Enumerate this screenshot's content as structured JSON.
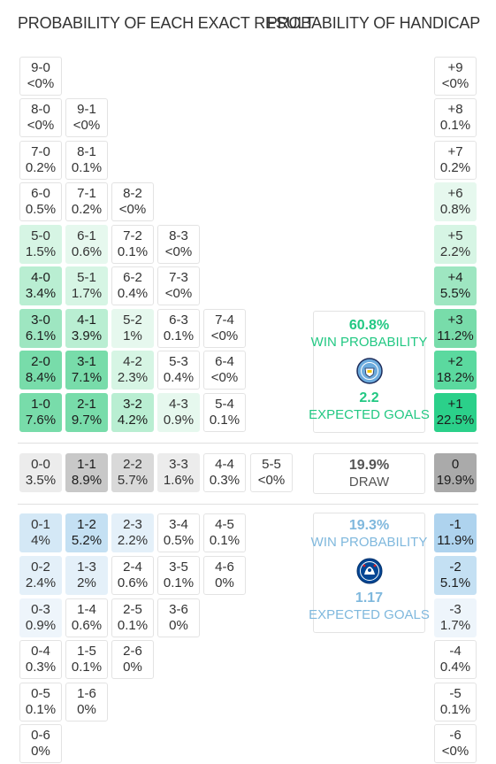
{
  "headers": {
    "exact_result": "PROBABILITY OF EACH EXACT RESULT",
    "handicap": "PROBABILITY OF HANDICAP"
  },
  "colors": {
    "home_accent": "#22c883",
    "away_accent": "#7fb8dd",
    "draw_text": "#555555"
  },
  "home_wins": [
    [
      {
        "s": "9-0",
        "p": "<0%"
      }
    ],
    [
      {
        "s": "8-0",
        "p": "<0%"
      },
      {
        "s": "9-1",
        "p": "<0%"
      }
    ],
    [
      {
        "s": "7-0",
        "p": "0.2%"
      },
      {
        "s": "8-1",
        "p": "0.1%"
      }
    ],
    [
      {
        "s": "6-0",
        "p": "0.5%"
      },
      {
        "s": "7-1",
        "p": "0.2%"
      },
      {
        "s": "8-2",
        "p": "<0%"
      }
    ],
    [
      {
        "s": "5-0",
        "p": "1.5%"
      },
      {
        "s": "6-1",
        "p": "0.6%"
      },
      {
        "s": "7-2",
        "p": "0.1%"
      },
      {
        "s": "8-3",
        "p": "<0%"
      }
    ],
    [
      {
        "s": "4-0",
        "p": "3.4%"
      },
      {
        "s": "5-1",
        "p": "1.7%"
      },
      {
        "s": "6-2",
        "p": "0.4%"
      },
      {
        "s": "7-3",
        "p": "<0%"
      }
    ],
    [
      {
        "s": "3-0",
        "p": "6.1%"
      },
      {
        "s": "4-1",
        "p": "3.9%"
      },
      {
        "s": "5-2",
        "p": "1%"
      },
      {
        "s": "6-3",
        "p": "0.1%"
      },
      {
        "s": "7-4",
        "p": "<0%"
      }
    ],
    [
      {
        "s": "2-0",
        "p": "8.4%"
      },
      {
        "s": "3-1",
        "p": "7.1%"
      },
      {
        "s": "4-2",
        "p": "2.3%"
      },
      {
        "s": "5-3",
        "p": "0.4%"
      },
      {
        "s": "6-4",
        "p": "<0%"
      }
    ],
    [
      {
        "s": "1-0",
        "p": "7.6%"
      },
      {
        "s": "2-1",
        "p": "9.7%"
      },
      {
        "s": "3-2",
        "p": "4.2%"
      },
      {
        "s": "4-3",
        "p": "0.9%"
      },
      {
        "s": "5-4",
        "p": "0.1%"
      }
    ]
  ],
  "draws": [
    {
      "s": "0-0",
      "p": "3.5%"
    },
    {
      "s": "1-1",
      "p": "8.9%"
    },
    {
      "s": "2-2",
      "p": "5.7%"
    },
    {
      "s": "3-3",
      "p": "1.6%"
    },
    {
      "s": "4-4",
      "p": "0.3%"
    },
    {
      "s": "5-5",
      "p": "<0%"
    }
  ],
  "away_wins": [
    [
      {
        "s": "0-1",
        "p": "4%"
      },
      {
        "s": "1-2",
        "p": "5.2%"
      },
      {
        "s": "2-3",
        "p": "2.2%"
      },
      {
        "s": "3-4",
        "p": "0.5%"
      },
      {
        "s": "4-5",
        "p": "0.1%"
      }
    ],
    [
      {
        "s": "0-2",
        "p": "2.4%"
      },
      {
        "s": "1-3",
        "p": "2%"
      },
      {
        "s": "2-4",
        "p": "0.6%"
      },
      {
        "s": "3-5",
        "p": "0.1%"
      },
      {
        "s": "4-6",
        "p": "0%"
      }
    ],
    [
      {
        "s": "0-3",
        "p": "0.9%"
      },
      {
        "s": "1-4",
        "p": "0.6%"
      },
      {
        "s": "2-5",
        "p": "0.1%"
      },
      {
        "s": "3-6",
        "p": "0%"
      }
    ],
    [
      {
        "s": "0-4",
        "p": "0.3%"
      },
      {
        "s": "1-5",
        "p": "0.1%"
      },
      {
        "s": "2-6",
        "p": "0%"
      }
    ],
    [
      {
        "s": "0-5",
        "p": "0.1%"
      },
      {
        "s": "1-6",
        "p": "0%"
      }
    ],
    [
      {
        "s": "0-6",
        "p": "0%"
      }
    ]
  ],
  "handicap": [
    {
      "h": "+9",
      "p": "<0%"
    },
    {
      "h": "+8",
      "p": "0.1%"
    },
    {
      "h": "+7",
      "p": "0.2%"
    },
    {
      "h": "+6",
      "p": "0.8%"
    },
    {
      "h": "+5",
      "p": "2.2%"
    },
    {
      "h": "+4",
      "p": "5.5%"
    },
    {
      "h": "+3",
      "p": "11.2%"
    },
    {
      "h": "+2",
      "p": "18.2%"
    },
    {
      "h": "+1",
      "p": "22.5%"
    },
    {
      "h": "0",
      "p": "19.9%"
    },
    {
      "h": "-1",
      "p": "11.9%"
    },
    {
      "h": "-2",
      "p": "5.1%"
    },
    {
      "h": "-3",
      "p": "1.7%"
    },
    {
      "h": "-4",
      "p": "0.4%"
    },
    {
      "h": "-5",
      "p": "0.1%"
    },
    {
      "h": "-6",
      "p": "<0%"
    }
  ],
  "home_summary": {
    "win_pct": "60.8%",
    "win_label": "WIN PROBABILITY",
    "goals": "2.2",
    "goals_label": "EXPECTED GOALS",
    "crest_icon": "manchester-city-crest"
  },
  "draw_summary": {
    "pct": "19.9%",
    "label": "DRAW"
  },
  "away_summary": {
    "win_pct": "19.3%",
    "win_label": "WIN PROBABILITY",
    "goals": "1.17",
    "goals_label": "EXPECTED GOALS",
    "crest_icon": "chelsea-crest"
  }
}
